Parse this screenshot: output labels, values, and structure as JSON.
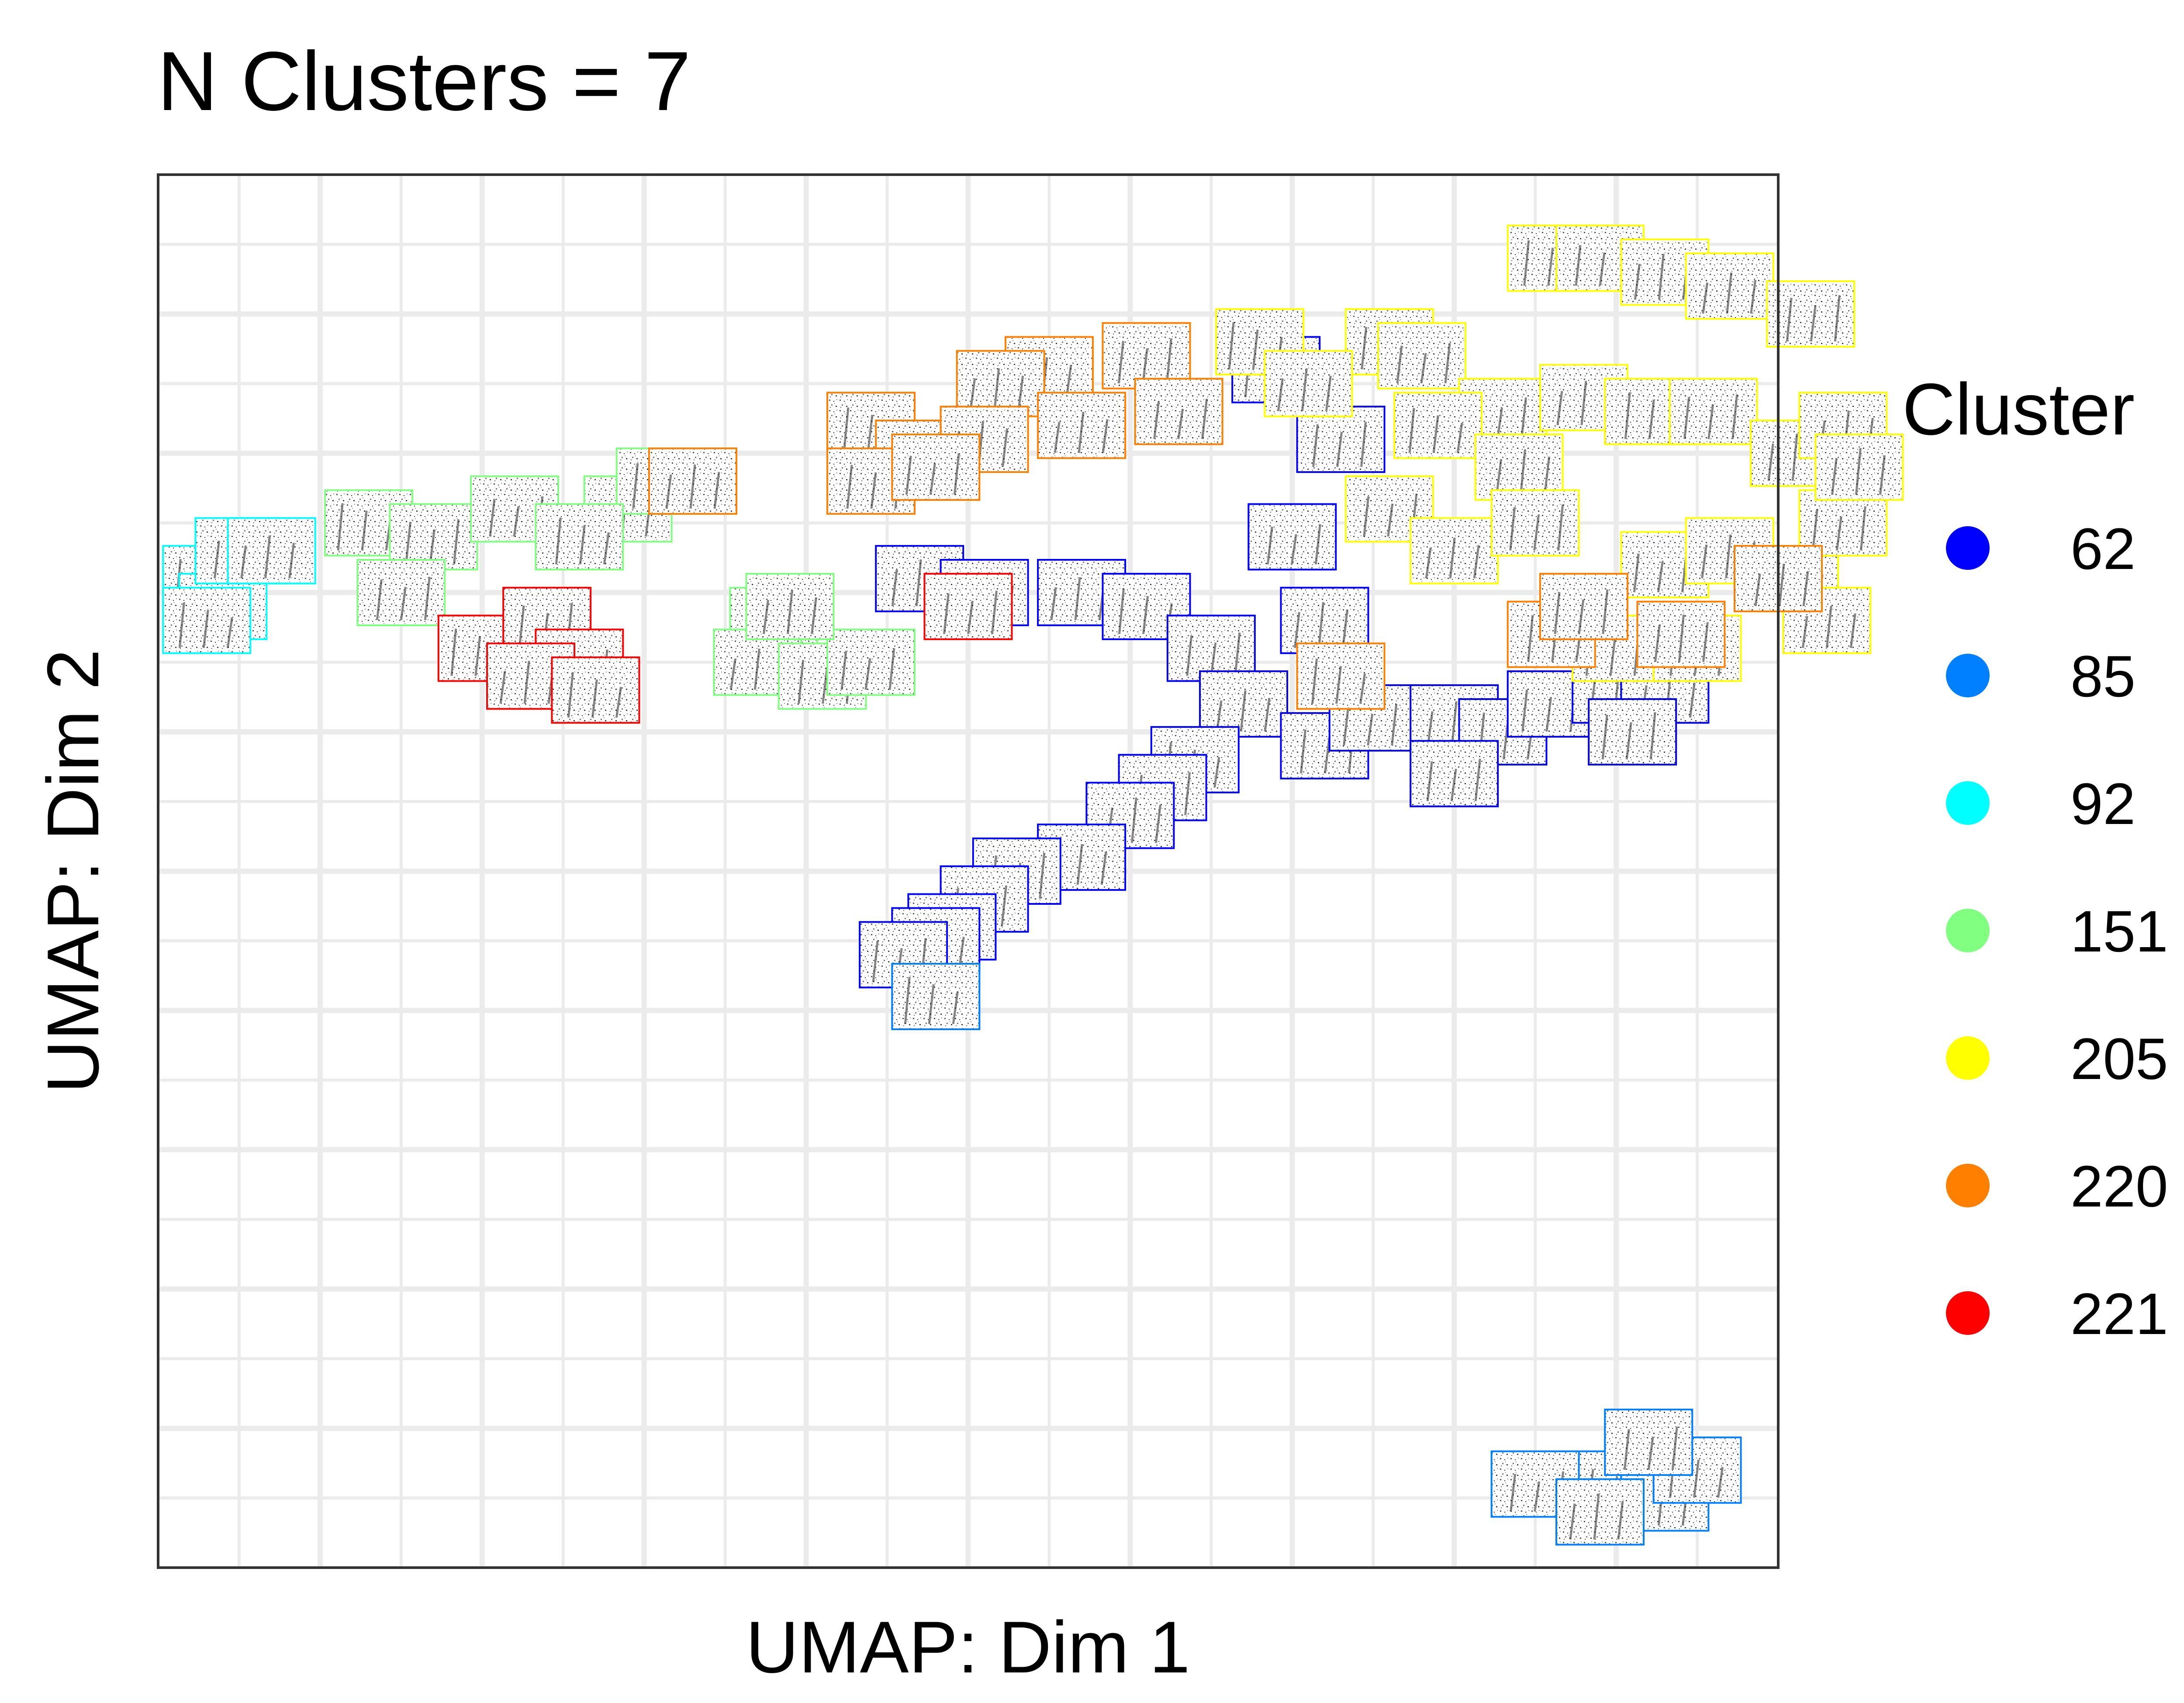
{
  "chart_data": {
    "type": "scatter",
    "title": "N Clusters = 7",
    "xlabel": "UMAP: Dim 1",
    "ylabel": "UMAP: Dim 2",
    "xlim": [
      0,
      10
    ],
    "ylim": [
      0,
      10
    ],
    "grid": true,
    "legend": {
      "title": "Cluster",
      "position": "right"
    },
    "note_markers": "each point is drawn as a small spectrogram thumbnail outlined in its cluster color",
    "series": [
      {
        "name": "62",
        "color": "#0000FF",
        "points": [
          [
            6.9,
            8.6
          ],
          [
            7.3,
            8.1
          ],
          [
            7.0,
            7.4
          ],
          [
            5.7,
            7.0
          ],
          [
            6.1,
            6.9
          ],
          [
            6.5,
            6.6
          ],
          [
            7.2,
            6.8
          ],
          [
            6.7,
            6.2
          ],
          [
            7.2,
            5.9
          ],
          [
            7.5,
            6.1
          ],
          [
            8.0,
            6.1
          ],
          [
            8.3,
            6.0
          ],
          [
            8.6,
            6.2
          ],
          [
            9.0,
            6.3
          ],
          [
            9.3,
            6.3
          ],
          [
            6.4,
            5.8
          ],
          [
            6.2,
            5.6
          ],
          [
            6.0,
            5.4
          ],
          [
            5.7,
            5.1
          ],
          [
            5.3,
            5.0
          ],
          [
            5.1,
            4.8
          ],
          [
            4.9,
            4.6
          ],
          [
            4.8,
            4.5
          ],
          [
            4.6,
            4.4
          ],
          [
            4.7,
            7.1
          ],
          [
            5.1,
            7.0
          ],
          [
            9.1,
            6.0
          ],
          [
            8.0,
            5.7
          ]
        ]
      },
      {
        "name": "85",
        "color": "#007FFF",
        "points": [
          [
            4.8,
            4.1
          ],
          [
            9.0,
            0.6
          ],
          [
            8.5,
            0.6
          ],
          [
            9.3,
            0.5
          ],
          [
            9.5,
            0.7
          ],
          [
            9.2,
            0.9
          ],
          [
            8.9,
            0.4
          ]
        ]
      },
      {
        "name": "92",
        "color": "#00FFFF",
        "points": [
          [
            0.3,
            7.1
          ],
          [
            0.4,
            6.9
          ],
          [
            0.5,
            7.3
          ],
          [
            0.7,
            7.3
          ],
          [
            0.3,
            6.8
          ]
        ]
      },
      {
        "name": "151",
        "color": "#80FF80",
        "points": [
          [
            1.3,
            7.5
          ],
          [
            1.7,
            7.4
          ],
          [
            2.2,
            7.6
          ],
          [
            2.9,
            7.6
          ],
          [
            3.1,
            7.8
          ],
          [
            1.5,
            7.0
          ],
          [
            3.8,
            6.8
          ],
          [
            3.7,
            6.5
          ],
          [
            4.1,
            6.4
          ],
          [
            4.4,
            6.5
          ],
          [
            3.9,
            6.9
          ],
          [
            2.6,
            7.4
          ]
        ]
      },
      {
        "name": "205",
        "color": "#FFFF00",
        "points": [
          [
            6.8,
            8.8
          ],
          [
            7.6,
            8.8
          ],
          [
            7.8,
            8.7
          ],
          [
            7.1,
            8.5
          ],
          [
            8.6,
            9.4
          ],
          [
            8.9,
            9.4
          ],
          [
            9.3,
            9.3
          ],
          [
            9.7,
            9.2
          ],
          [
            10.2,
            9.0
          ],
          [
            8.3,
            8.3
          ],
          [
            8.8,
            8.4
          ],
          [
            9.2,
            8.3
          ],
          [
            9.6,
            8.3
          ],
          [
            10.1,
            8.0
          ],
          [
            10.4,
            8.2
          ],
          [
            7.9,
            8.2
          ],
          [
            7.6,
            7.6
          ],
          [
            8.4,
            7.9
          ],
          [
            8.0,
            7.3
          ],
          [
            8.5,
            7.5
          ],
          [
            9.3,
            7.2
          ],
          [
            9.7,
            7.3
          ],
          [
            10.1,
            7.1
          ],
          [
            10.4,
            7.5
          ],
          [
            10.5,
            7.9
          ],
          [
            10.3,
            6.8
          ],
          [
            9.0,
            6.6
          ],
          [
            9.5,
            6.6
          ]
        ]
      },
      {
        "name": "220",
        "color": "#FF8000",
        "points": [
          [
            5.5,
            8.6
          ],
          [
            6.1,
            8.7
          ],
          [
            6.3,
            8.3
          ],
          [
            5.2,
            8.5
          ],
          [
            4.4,
            8.2
          ],
          [
            4.7,
            8.0
          ],
          [
            5.1,
            8.1
          ],
          [
            5.7,
            8.2
          ],
          [
            4.4,
            7.8
          ],
          [
            4.8,
            7.9
          ],
          [
            3.3,
            7.8
          ],
          [
            8.6,
            6.7
          ],
          [
            8.8,
            6.9
          ],
          [
            9.4,
            6.7
          ],
          [
            10.0,
            7.1
          ],
          [
            7.3,
            6.4
          ]
        ]
      },
      {
        "name": "221",
        "color": "#FF0000",
        "points": [
          [
            2.0,
            6.6
          ],
          [
            2.4,
            6.8
          ],
          [
            2.6,
            6.5
          ],
          [
            2.3,
            6.4
          ],
          [
            2.7,
            6.3
          ],
          [
            5.0,
            6.9
          ]
        ]
      }
    ]
  }
}
